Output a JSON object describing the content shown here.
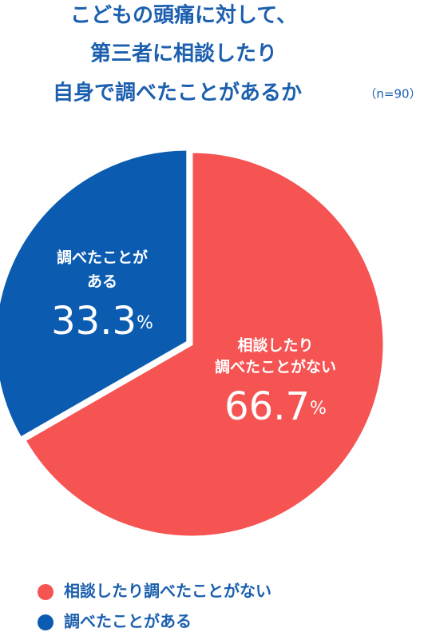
{
  "chart_data": {
    "type": "pie",
    "title_lines": [
      "こどもの頭痛に対して、",
      "第三者に相談したり",
      "自身で調べたことがあるか"
    ],
    "note": "（n=90）",
    "categories": [
      "相談したり調べたことがない",
      "調べたことがある"
    ],
    "label_lines": [
      [
        "相談したり",
        "調べたことがない"
      ],
      [
        "調べたことが",
        "ある"
      ]
    ],
    "values": [
      66.7,
      33.3
    ],
    "value_labels": [
      "66.7%",
      "33.3%"
    ],
    "colors": [
      "#f65353",
      "#0b5cb1"
    ],
    "legend": "bottom-left"
  }
}
